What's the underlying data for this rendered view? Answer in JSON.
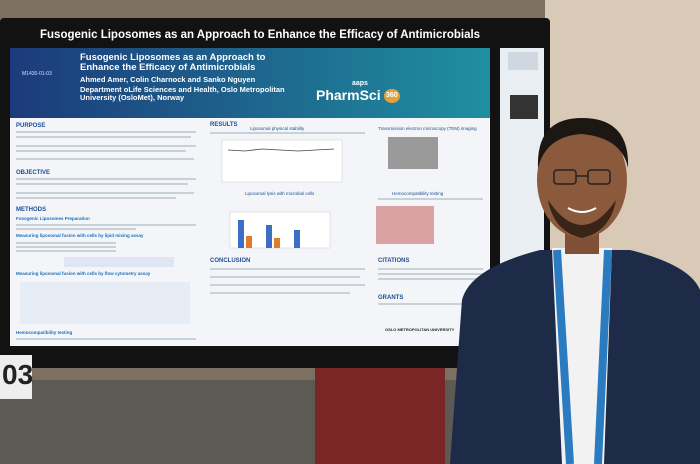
{
  "screen_title": "Fusogenic Liposomes as an Approach to Enhance the Efficacy of Antimicrobials",
  "poster": {
    "session_id": "M1430-01-03",
    "title": "Fusogenic Liposomes as an Approach to Enhance the Efficacy of Antimicrobials",
    "authors": "Ahmed Amer, Colin Charnock and Sanko Nguyen",
    "affiliation": "Department oLife Sciences and Health, Oslo Metropolitan University (OsloMet), Norway",
    "brand_small": "aaps",
    "brand": "PharmSci",
    "brand_badge": "360",
    "left_sections": [
      {
        "heading": "PURPOSE"
      },
      {
        "heading": "OBJECTIVE"
      },
      {
        "heading": "METHODS",
        "subheadings": [
          "Fusogenic Liposomes Preparation",
          "Measuring liposomal fusion with cells by lipid mixing assay",
          "Measuring liposomal fusion with cells by flow cytometry assay",
          "Hemocompatibility testing"
        ]
      }
    ],
    "results": {
      "heading": "RESULTS",
      "subheadings": [
        "Liposomal physical stability",
        "Liposomal lysis with microbial cells",
        "Transmission electron microscopy (TEM) imaging",
        "Hemocompatibility testing"
      ]
    },
    "conclusion": "CONCLUSION",
    "citations": "CITATIONS",
    "grants": "GRANTS",
    "university": "OSLO METROPOLITAN UNIVERSITY"
  },
  "booth_number": "03"
}
